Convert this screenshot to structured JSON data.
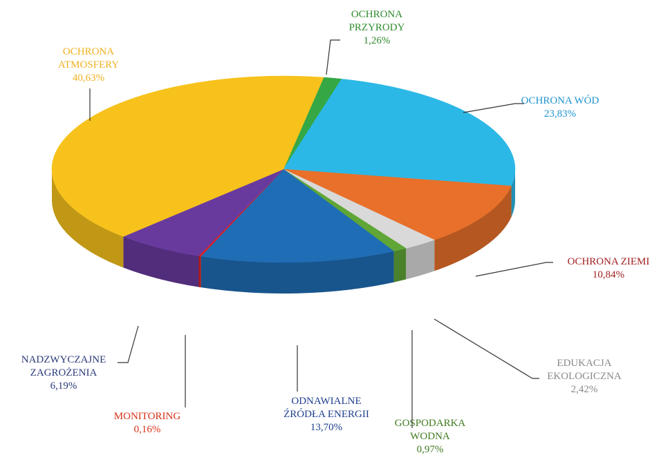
{
  "chart_data": {
    "type": "pie3d",
    "categories": [
      "OCHRONA PRZYRODY",
      "OCHRONA WÓD",
      "OCHRONA ZIEMI",
      "EDUKACJA EKOLOGICZNA",
      "GOSPODARKA WODNA",
      "ODNAWIALNE ŹRÓDŁA ENERGII",
      "MONITORING",
      "NADZWYCZAJNE ZAGROŻENIA",
      "OCHRONA ATMOSFERY"
    ],
    "values": [
      1.26,
      23.83,
      10.84,
      2.42,
      0.97,
      13.7,
      0.16,
      6.19,
      40.63
    ],
    "value_labels": [
      "1,26%",
      "23,83%",
      "10,84%",
      "2,42%",
      "0,97%",
      "13,70%",
      "0,16%",
      "6,19%",
      "40,63%"
    ],
    "colors": [
      "#35a845",
      "#2cb8e6",
      "#e8702a",
      "#d9d9d9",
      "#5fa636",
      "#1f6db5",
      "#e02020",
      "#683a9e",
      "#f7c21c"
    ],
    "label_colors": [
      "#2e8b2e",
      "#1f93cf",
      "#a02020",
      "#888888",
      "#3f7a1e",
      "#1f3f8f",
      "#d83018",
      "#2a3a7a",
      "#f0b020"
    ]
  }
}
